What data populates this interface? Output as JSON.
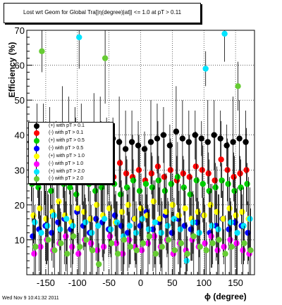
{
  "chart_data": {
    "type": "scatter",
    "title": "Lost wrt Geom for Global Tra[|η(degree)|at]| <= 1.0 at pT > 0.11",
    "xlabel": "ϕ (degree)",
    "ylabel": "Efficiency (%)",
    "xlim": [
      -180,
      180
    ],
    "ylim": [
      0,
      70
    ],
    "x_ticks": [
      "-150",
      "-100",
      "-50",
      "0",
      "50",
      "100",
      "150"
    ],
    "y_ticks": [
      "10",
      "20",
      "30",
      "40",
      "50",
      "60",
      "70"
    ],
    "grid": true,
    "legend_position": "left-middle",
    "series": [
      {
        "name": "(+) with pT > 0.1",
        "color": "#000000",
        "x": [
          -170,
          -160,
          -150,
          -140,
          -130,
          -120,
          -110,
          -100,
          -90,
          -80,
          -70,
          -60,
          -50,
          -40,
          -30,
          -20,
          -10,
          0,
          10,
          20,
          30,
          40,
          50,
          60,
          70,
          80,
          90,
          100,
          110,
          120,
          130,
          140,
          150,
          160,
          170
        ],
        "y": [
          38,
          37,
          39,
          40,
          38,
          41,
          40,
          39,
          42,
          38,
          40,
          41,
          37,
          39,
          38,
          36,
          38,
          37,
          36,
          38,
          39,
          40,
          37,
          41,
          39,
          38,
          40,
          39,
          38,
          40,
          39,
          37,
          38,
          39,
          38
        ]
      },
      {
        "name": "(-) with pT > 0.1",
        "color": "#ff0000",
        "x": [
          -170,
          -160,
          -150,
          -140,
          -130,
          -120,
          -110,
          -100,
          -90,
          -80,
          -70,
          -60,
          -50,
          -40,
          -30,
          -20,
          -10,
          0,
          10,
          20,
          30,
          40,
          50,
          60,
          70,
          80,
          90,
          100,
          110,
          120,
          130,
          140,
          150,
          160,
          170
        ],
        "y": [
          29,
          28,
          30,
          27,
          31,
          29,
          28,
          33,
          30,
          29,
          27,
          31,
          30,
          28,
          32,
          29,
          28,
          30,
          27,
          29,
          31,
          28,
          30,
          27,
          29,
          28,
          31,
          30,
          29,
          27,
          33,
          30,
          28,
          29,
          30
        ]
      },
      {
        "name": "(+) with pT > 0.5",
        "color": "#00cc00",
        "x": [
          -170,
          -160,
          -150,
          -140,
          -130,
          -120,
          -110,
          -100,
          -90,
          -80,
          -70,
          -60,
          -50,
          -40,
          -30,
          -20,
          -10,
          0,
          10,
          20,
          30,
          40,
          50,
          60,
          70,
          80,
          90,
          100,
          110,
          120,
          130,
          140,
          150,
          160,
          170
        ],
        "y": [
          26,
          25,
          27,
          24,
          28,
          26,
          25,
          23,
          27,
          26,
          24,
          25,
          28,
          26,
          23,
          25,
          27,
          24,
          26,
          25,
          27,
          24,
          26,
          28,
          25,
          23,
          27,
          26,
          24,
          25,
          27,
          26,
          24,
          25,
          26
        ]
      },
      {
        "name": "(-) with pT > 0.5",
        "color": "#0000ff",
        "x": [
          -170,
          -160,
          -150,
          -140,
          -130,
          -120,
          -110,
          -100,
          -90,
          -80,
          -70,
          -60,
          -50,
          -40,
          -30,
          -20,
          -10,
          0,
          10,
          20,
          30,
          40,
          50,
          60,
          70,
          80,
          90,
          100,
          110,
          120,
          130,
          140,
          150,
          160,
          170
        ],
        "y": [
          11,
          13,
          14,
          12,
          15,
          16,
          13,
          18,
          14,
          12,
          16,
          15,
          13,
          17,
          14,
          12,
          16,
          14,
          18,
          13,
          15,
          17,
          12,
          16,
          14,
          13,
          15,
          17,
          12,
          14,
          16,
          13,
          15,
          14,
          12
        ]
      },
      {
        "name": "(+) with pT > 1.0",
        "color": "#ffff00",
        "x": [
          -170,
          -160,
          -150,
          -140,
          -130,
          -120,
          -110,
          -100,
          -90,
          -80,
          -70,
          -60,
          -50,
          -40,
          -30,
          -20,
          -10,
          0,
          10,
          20,
          30,
          40,
          50,
          60,
          70,
          80,
          90,
          100,
          110,
          120,
          130,
          140,
          150,
          160,
          170
        ],
        "y": [
          17,
          19,
          16,
          18,
          21,
          17,
          15,
          19,
          18,
          16,
          20,
          17,
          19,
          15,
          18,
          20,
          16,
          19,
          17,
          21,
          16,
          18,
          20,
          17,
          19,
          16,
          18,
          17,
          20,
          18,
          16,
          19,
          17,
          18,
          16
        ]
      },
      {
        "name": "(-) with pT > 1.0",
        "color": "#ff00ff",
        "x": [
          -170,
          -160,
          -150,
          -140,
          -130,
          -120,
          -110,
          -100,
          -90,
          -80,
          -70,
          -60,
          -50,
          -40,
          -30,
          -20,
          -10,
          0,
          10,
          20,
          30,
          40,
          50,
          60,
          70,
          80,
          90,
          100,
          110,
          120,
          130,
          140,
          150,
          160,
          170
        ],
        "y": [
          6,
          8,
          10,
          7,
          9,
          11,
          8,
          6,
          10,
          9,
          7,
          8,
          11,
          9,
          6,
          10,
          8,
          7,
          9,
          11,
          8,
          10,
          6,
          9,
          7,
          10,
          8,
          9,
          11,
          7,
          8,
          10,
          9,
          7,
          6
        ]
      },
      {
        "name": "(+) with pT > 2.0",
        "color": "#00e5ff",
        "x": [
          -170,
          -160,
          -150,
          -140,
          -130,
          -120,
          -110,
          -100,
          -90,
          -80,
          -70,
          -60,
          -50,
          -40,
          -30,
          -20,
          -10,
          0,
          10,
          20,
          30,
          40,
          50,
          60,
          70,
          80,
          90,
          100,
          110,
          120,
          130,
          140,
          150,
          160,
          170
        ],
        "y": [
          15,
          12,
          14,
          17,
          13,
          16,
          14,
          68,
          15,
          12,
          14,
          16,
          13,
          15,
          11,
          14,
          12,
          16,
          13,
          15,
          12,
          14,
          16,
          13,
          4,
          15,
          12,
          59,
          14,
          13,
          69,
          15,
          12,
          14,
          16
        ]
      },
      {
        "name": "(-) with pT > 2.0",
        "color": "#66cc33",
        "x": [
          -170,
          -160,
          -150,
          -140,
          -130,
          -120,
          -110,
          -100,
          -90,
          -80,
          -70,
          -60,
          -50,
          -40,
          -30,
          -20,
          -10,
          0,
          10,
          20,
          30,
          40,
          50,
          60,
          70,
          80,
          90,
          100,
          110,
          120,
          130,
          140,
          150,
          160,
          170
        ],
        "y": [
          8,
          64,
          10,
          7,
          9,
          6,
          11,
          8,
          10,
          7,
          3,
          62,
          9,
          6,
          10,
          8,
          7,
          9,
          11,
          6,
          8,
          10,
          7,
          9,
          6,
          11,
          8,
          7,
          9,
          10,
          6,
          8,
          54,
          9,
          7
        ]
      }
    ]
  },
  "footer": {
    "timestamp": "Wed Nov  9 10:41:32 2011"
  }
}
